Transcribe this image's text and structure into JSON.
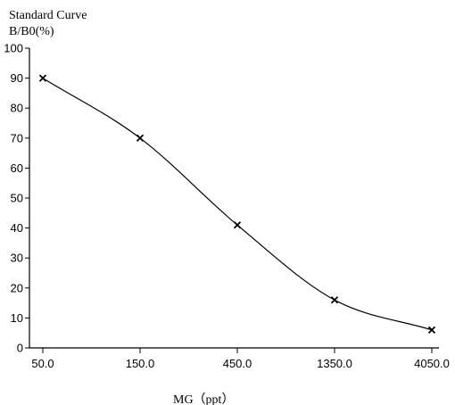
{
  "chart_data": {
    "type": "line",
    "title": "Standard Curve",
    "ylabel": "B/B0(%)",
    "xlabel": "MG（ppt）",
    "x_scale": "log",
    "categories": [
      "50.0",
      "150.0",
      "450.0",
      "1350.0",
      "4050.0"
    ],
    "x": [
      50,
      150,
      450,
      1350,
      4050
    ],
    "ylim": [
      0,
      100
    ],
    "yticks": [
      0,
      10,
      20,
      30,
      40,
      50,
      60,
      70,
      80,
      90,
      100
    ],
    "grid": false,
    "series": [
      {
        "values": [
          90,
          70,
          41,
          16,
          6
        ]
      }
    ],
    "colors": {
      "line": "#000000",
      "marker": "#000000",
      "axis": "#000000"
    }
  }
}
